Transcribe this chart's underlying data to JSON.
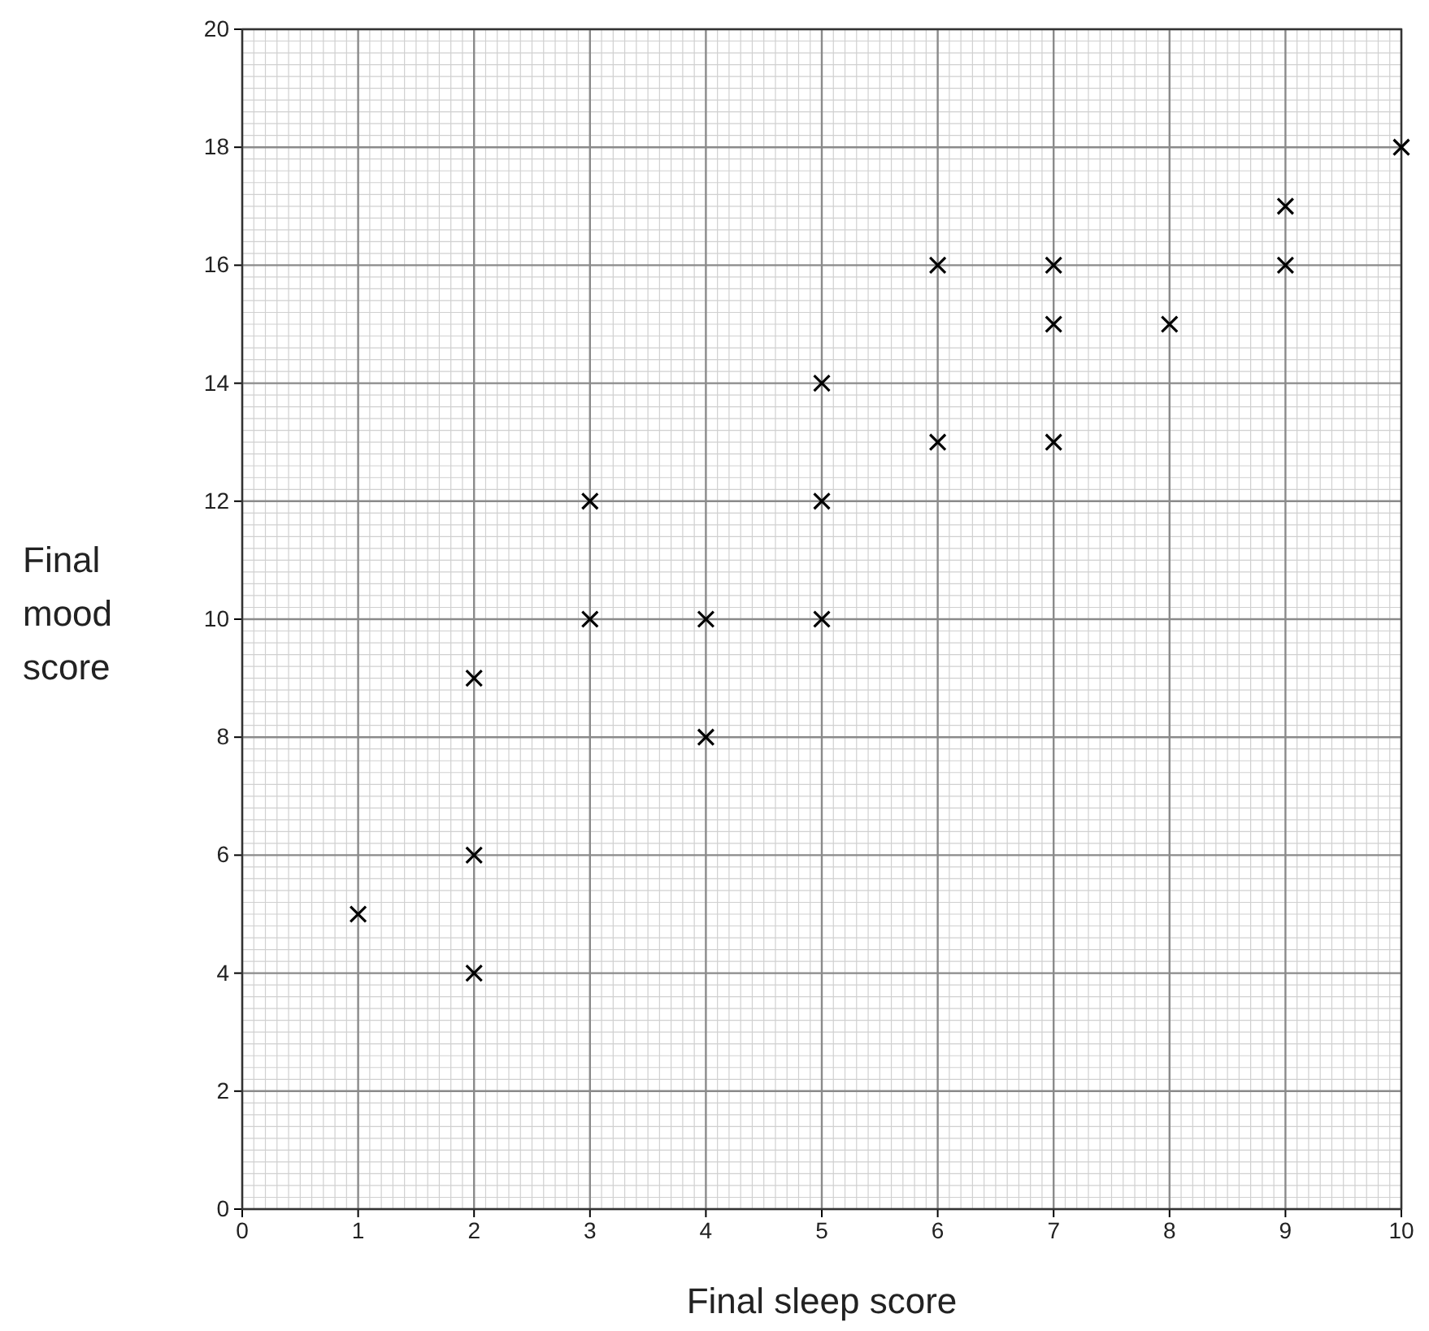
{
  "chart_data": {
    "type": "scatter",
    "xlabel": "Final sleep score",
    "ylabel": "Final mood score",
    "x": [
      1,
      2,
      2,
      2,
      3,
      3,
      4,
      4,
      5,
      5,
      5,
      6,
      6,
      7,
      7,
      7,
      8,
      9,
      9,
      10
    ],
    "series": [
      {
        "color": "#000000",
        "values": [
          5,
          9,
          6,
          4,
          12,
          10,
          10,
          8,
          14,
          12,
          10,
          16,
          13,
          16,
          15,
          13,
          15,
          17,
          16,
          18
        ]
      }
    ],
    "xlim": [
      0,
      10
    ],
    "ylim": [
      0,
      20
    ],
    "xticks": [
      0,
      1,
      2,
      3,
      4,
      5,
      6,
      7,
      8,
      9,
      10
    ],
    "yticks": [
      0,
      2,
      4,
      6,
      8,
      10,
      12,
      14,
      16,
      18,
      20
    ],
    "grid": true,
    "marker": "cross"
  }
}
